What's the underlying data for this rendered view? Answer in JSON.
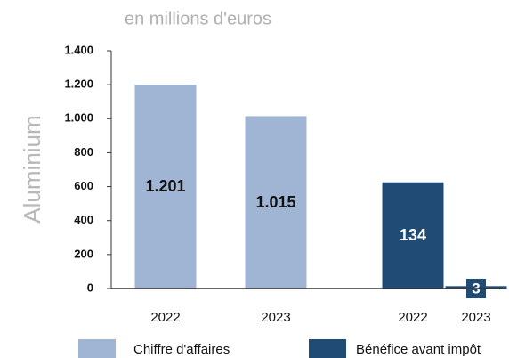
{
  "chart_data": {
    "type": "bar",
    "subtitle": "en millions d'euros",
    "ylabel": "Aluminium",
    "categories": [
      "2022",
      "2023",
      "2022",
      "2023"
    ],
    "series": [
      {
        "name": "Chiffre d'affaires",
        "color": "#a0b4d4",
        "values": [
          1201,
          1015,
          null,
          null
        ],
        "value_labels": [
          "1.201",
          "1.015",
          null,
          null
        ]
      },
      {
        "name": "Bénéfice avant impôt",
        "color": "#1f4b75",
        "axis": "y2",
        "values": [
          null,
          null,
          134,
          3
        ]
      }
    ],
    "ylim": [
      0,
      1400
    ],
    "yticks": [
      0,
      {
        "value": 200,
        "label": "200"
      },
      400,
      600,
      800,
      {
        "value": 1000,
        "label": "1.000"
      },
      {
        "value": 1200,
        "label": "1.200"
      },
      {
        "value": 1400,
        "label": "1.400"
      }
    ],
    "y2lim": [
      0,
      300
    ],
    "legend": "bottom"
  }
}
